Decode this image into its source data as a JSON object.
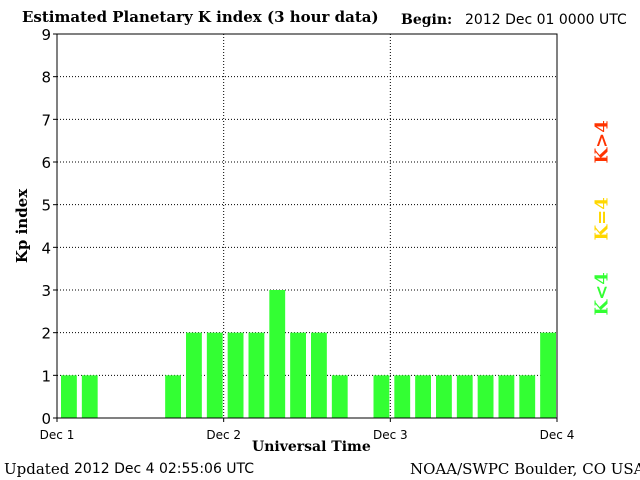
{
  "header": {
    "title": "Estimated Planetary K index (3 hour data)",
    "begin_label": "Begin:",
    "begin_value": "2012 Dec 01 0000 UTC"
  },
  "footer": {
    "updated_label": "Updated",
    "updated_value": "2012 Dec  4 02:55:06 UTC",
    "credit": "NOAA/SWPC Boulder, CO USA"
  },
  "legend": [
    {
      "label": "K<4",
      "color": "#33ff33"
    },
    {
      "label": "K=4",
      "color": "#ffd700"
    },
    {
      "label": "K>4",
      "color": "#ff3300"
    }
  ],
  "chart_data": {
    "type": "bar",
    "title": "Estimated Planetary K index (3 hour data)",
    "xlabel": "Universal Time",
    "ylabel": "Kp index",
    "ylim": [
      0,
      9
    ],
    "yticks": [
      0,
      1,
      2,
      3,
      4,
      5,
      6,
      7,
      8,
      9
    ],
    "xticks": [
      "Dec 1",
      "Dec 2",
      "Dec 3",
      "Dec 4"
    ],
    "grid": true,
    "bar_color": "#33ff33",
    "series": [
      {
        "x": [
          "Dec 1 00-03",
          "Dec 1 03-06",
          "Dec 1 06-09",
          "Dec 1 09-12",
          "Dec 1 12-15",
          "Dec 1 15-18",
          "Dec 1 18-21",
          "Dec 1 21-24",
          "Dec 2 00-03",
          "Dec 2 03-06",
          "Dec 2 06-09",
          "Dec 2 09-12",
          "Dec 2 12-15",
          "Dec 2 15-18",
          "Dec 2 18-21",
          "Dec 2 21-24",
          "Dec 3 00-03",
          "Dec 3 03-06",
          "Dec 3 06-09",
          "Dec 3 09-12",
          "Dec 3 12-15",
          "Dec 3 15-18",
          "Dec 3 18-21",
          "Dec 3 21-24"
        ],
        "values": [
          1,
          1,
          0,
          0,
          0,
          1,
          2,
          2,
          2,
          2,
          3,
          2,
          2,
          1,
          0,
          1,
          1,
          1,
          1,
          1,
          1,
          1,
          1,
          2
        ]
      }
    ]
  }
}
